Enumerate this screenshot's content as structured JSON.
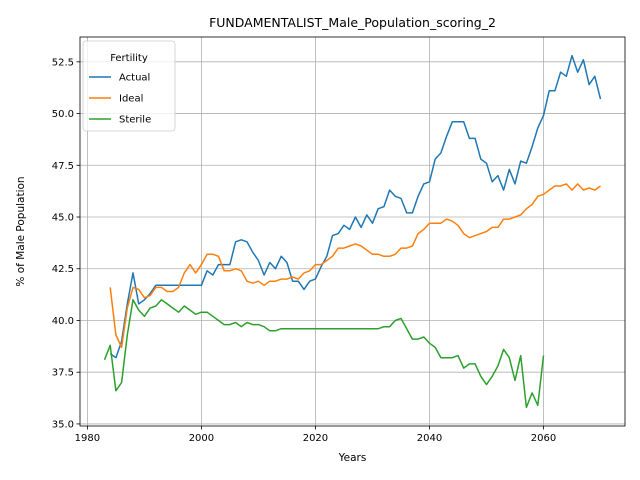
{
  "chart_data": {
    "type": "line",
    "title": "FUNDAMENTALIST_Male_Population_scoring_2",
    "xlabel": "Years",
    "ylabel": "% of Male Population",
    "xlim": [
      1978.7,
      2074.3
    ],
    "ylim": [
      34.9,
      53.7
    ],
    "xticks": [
      1980,
      2000,
      2020,
      2040,
      2060
    ],
    "yticks": [
      35.0,
      37.5,
      40.0,
      42.5,
      45.0,
      47.5,
      50.0,
      52.5
    ],
    "grid": true,
    "legend": {
      "title": "Fertility",
      "placement": "upper-left"
    },
    "series": [
      {
        "name": "Actual",
        "color": "#1f77b4",
        "points": [
          [
            1984,
            38.4
          ],
          [
            1985,
            38.2
          ],
          [
            1986,
            39.0
          ],
          [
            1987,
            40.8
          ],
          [
            1988,
            42.3
          ],
          [
            1989,
            40.8
          ],
          [
            1990,
            41.0
          ],
          [
            1991,
            41.3
          ],
          [
            1992,
            41.7
          ],
          [
            1993,
            41.7
          ],
          [
            1994,
            41.7
          ],
          [
            1995,
            41.7
          ],
          [
            1996,
            41.7
          ],
          [
            1997,
            41.7
          ],
          [
            1998,
            41.7
          ],
          [
            1999,
            41.7
          ],
          [
            2000,
            41.7
          ],
          [
            2001,
            42.4
          ],
          [
            2002,
            42.2
          ],
          [
            2003,
            42.7
          ],
          [
            2004,
            42.7
          ],
          [
            2005,
            42.7
          ],
          [
            2006,
            43.8
          ],
          [
            2007,
            43.9
          ],
          [
            2008,
            43.8
          ],
          [
            2009,
            43.3
          ],
          [
            2010,
            42.9
          ],
          [
            2011,
            42.2
          ],
          [
            2012,
            42.8
          ],
          [
            2013,
            42.5
          ],
          [
            2014,
            43.1
          ],
          [
            2015,
            42.8
          ],
          [
            2016,
            41.9
          ],
          [
            2017,
            41.9
          ],
          [
            2018,
            41.5
          ],
          [
            2019,
            41.9
          ],
          [
            2020,
            42.0
          ],
          [
            2021,
            42.6
          ],
          [
            2022,
            43.1
          ],
          [
            2023,
            44.1
          ],
          [
            2024,
            44.2
          ],
          [
            2025,
            44.6
          ],
          [
            2026,
            44.4
          ],
          [
            2027,
            45.0
          ],
          [
            2028,
            44.5
          ],
          [
            2029,
            45.1
          ],
          [
            2030,
            44.7
          ],
          [
            2031,
            45.4
          ],
          [
            2032,
            45.5
          ],
          [
            2033,
            46.3
          ],
          [
            2034,
            46.0
          ],
          [
            2035,
            45.9
          ],
          [
            2036,
            45.2
          ],
          [
            2037,
            45.2
          ],
          [
            2038,
            46.0
          ],
          [
            2039,
            46.6
          ],
          [
            2040,
            46.7
          ],
          [
            2041,
            47.8
          ],
          [
            2042,
            48.1
          ],
          [
            2043,
            48.9
          ],
          [
            2044,
            49.6
          ],
          [
            2045,
            49.6
          ],
          [
            2046,
            49.6
          ],
          [
            2047,
            48.8
          ],
          [
            2048,
            48.8
          ],
          [
            2049,
            47.8
          ],
          [
            2050,
            47.6
          ],
          [
            2051,
            46.7
          ],
          [
            2052,
            47.0
          ],
          [
            2053,
            46.3
          ],
          [
            2054,
            47.3
          ],
          [
            2055,
            46.6
          ],
          [
            2056,
            47.7
          ],
          [
            2057,
            47.6
          ],
          [
            2058,
            48.4
          ],
          [
            2059,
            49.3
          ],
          [
            2060,
            49.9
          ],
          [
            2061,
            51.1
          ],
          [
            2062,
            51.1
          ],
          [
            2063,
            52.0
          ],
          [
            2064,
            51.8
          ],
          [
            2065,
            52.8
          ],
          [
            2066,
            52.0
          ],
          [
            2067,
            52.6
          ],
          [
            2068,
            51.4
          ],
          [
            2069,
            51.8
          ],
          [
            2070,
            50.7
          ]
        ]
      },
      {
        "name": "Ideal",
        "color": "#ff7f0e",
        "points": [
          [
            1984,
            41.6
          ],
          [
            1985,
            39.3
          ],
          [
            1986,
            38.7
          ],
          [
            1987,
            40.6
          ],
          [
            1988,
            41.6
          ],
          [
            1989,
            41.5
          ],
          [
            1990,
            41.1
          ],
          [
            1991,
            41.2
          ],
          [
            1992,
            41.6
          ],
          [
            1993,
            41.6
          ],
          [
            1994,
            41.4
          ],
          [
            1995,
            41.4
          ],
          [
            1996,
            41.6
          ],
          [
            1997,
            42.3
          ],
          [
            1998,
            42.7
          ],
          [
            1999,
            42.3
          ],
          [
            2000,
            42.7
          ],
          [
            2001,
            43.2
          ],
          [
            2002,
            43.2
          ],
          [
            2003,
            43.1
          ],
          [
            2004,
            42.4
          ],
          [
            2005,
            42.4
          ],
          [
            2006,
            42.5
          ],
          [
            2007,
            42.4
          ],
          [
            2008,
            41.9
          ],
          [
            2009,
            41.8
          ],
          [
            2010,
            41.9
          ],
          [
            2011,
            41.7
          ],
          [
            2012,
            41.9
          ],
          [
            2013,
            41.9
          ],
          [
            2014,
            42.0
          ],
          [
            2015,
            42.0
          ],
          [
            2016,
            42.1
          ],
          [
            2017,
            42.0
          ],
          [
            2018,
            42.3
          ],
          [
            2019,
            42.4
          ],
          [
            2020,
            42.7
          ],
          [
            2021,
            42.7
          ],
          [
            2022,
            42.9
          ],
          [
            2023,
            43.1
          ],
          [
            2024,
            43.5
          ],
          [
            2025,
            43.5
          ],
          [
            2026,
            43.6
          ],
          [
            2027,
            43.7
          ],
          [
            2028,
            43.6
          ],
          [
            2029,
            43.4
          ],
          [
            2030,
            43.2
          ],
          [
            2031,
            43.2
          ],
          [
            2032,
            43.1
          ],
          [
            2033,
            43.1
          ],
          [
            2034,
            43.2
          ],
          [
            2035,
            43.5
          ],
          [
            2036,
            43.5
          ],
          [
            2037,
            43.6
          ],
          [
            2038,
            44.2
          ],
          [
            2039,
            44.4
          ],
          [
            2040,
            44.7
          ],
          [
            2041,
            44.7
          ],
          [
            2042,
            44.7
          ],
          [
            2043,
            44.9
          ],
          [
            2044,
            44.8
          ],
          [
            2045,
            44.6
          ],
          [
            2046,
            44.2
          ],
          [
            2047,
            44.0
          ],
          [
            2048,
            44.1
          ],
          [
            2049,
            44.2
          ],
          [
            2050,
            44.3
          ],
          [
            2051,
            44.5
          ],
          [
            2052,
            44.5
          ],
          [
            2053,
            44.9
          ],
          [
            2054,
            44.9
          ],
          [
            2055,
            45.0
          ],
          [
            2056,
            45.1
          ],
          [
            2057,
            45.4
          ],
          [
            2058,
            45.6
          ],
          [
            2059,
            46.0
          ],
          [
            2060,
            46.1
          ],
          [
            2061,
            46.3
          ],
          [
            2062,
            46.5
          ],
          [
            2063,
            46.5
          ],
          [
            2064,
            46.6
          ],
          [
            2065,
            46.3
          ],
          [
            2066,
            46.6
          ],
          [
            2067,
            46.3
          ],
          [
            2068,
            46.4
          ],
          [
            2069,
            46.3
          ],
          [
            2070,
            46.5
          ]
        ]
      },
      {
        "name": "Sterile",
        "color": "#2ca02c",
        "points": [
          [
            1983,
            38.1
          ],
          [
            1984,
            38.8
          ],
          [
            1985,
            36.6
          ],
          [
            1986,
            37.0
          ],
          [
            1987,
            39.3
          ],
          [
            1988,
            41.0
          ],
          [
            1989,
            40.5
          ],
          [
            1990,
            40.2
          ],
          [
            1991,
            40.6
          ],
          [
            1992,
            40.7
          ],
          [
            1993,
            41.0
          ],
          [
            1994,
            40.8
          ],
          [
            1995,
            40.6
          ],
          [
            1996,
            40.4
          ],
          [
            1997,
            40.7
          ],
          [
            1998,
            40.5
          ],
          [
            1999,
            40.3
          ],
          [
            2000,
            40.4
          ],
          [
            2001,
            40.4
          ],
          [
            2002,
            40.2
          ],
          [
            2003,
            40.0
          ],
          [
            2004,
            39.8
          ],
          [
            2005,
            39.8
          ],
          [
            2006,
            39.9
          ],
          [
            2007,
            39.7
          ],
          [
            2008,
            39.9
          ],
          [
            2009,
            39.8
          ],
          [
            2010,
            39.8
          ],
          [
            2011,
            39.7
          ],
          [
            2012,
            39.5
          ],
          [
            2013,
            39.5
          ],
          [
            2014,
            39.6
          ],
          [
            2015,
            39.6
          ],
          [
            2016,
            39.6
          ],
          [
            2017,
            39.6
          ],
          [
            2018,
            39.6
          ],
          [
            2019,
            39.6
          ],
          [
            2020,
            39.6
          ],
          [
            2021,
            39.6
          ],
          [
            2022,
            39.6
          ],
          [
            2023,
            39.6
          ],
          [
            2024,
            39.6
          ],
          [
            2025,
            39.6
          ],
          [
            2026,
            39.6
          ],
          [
            2027,
            39.6
          ],
          [
            2028,
            39.6
          ],
          [
            2029,
            39.6
          ],
          [
            2030,
            39.6
          ],
          [
            2031,
            39.6
          ],
          [
            2032,
            39.7
          ],
          [
            2033,
            39.7
          ],
          [
            2034,
            40.0
          ],
          [
            2035,
            40.1
          ],
          [
            2036,
            39.6
          ],
          [
            2037,
            39.1
          ],
          [
            2038,
            39.1
          ],
          [
            2039,
            39.2
          ],
          [
            2040,
            38.9
          ],
          [
            2041,
            38.7
          ],
          [
            2042,
            38.2
          ],
          [
            2043,
            38.2
          ],
          [
            2044,
            38.2
          ],
          [
            2045,
            38.3
          ],
          [
            2046,
            37.7
          ],
          [
            2047,
            37.9
          ],
          [
            2048,
            37.9
          ],
          [
            2049,
            37.3
          ],
          [
            2050,
            36.9
          ],
          [
            2051,
            37.3
          ],
          [
            2052,
            37.8
          ],
          [
            2053,
            38.6
          ],
          [
            2054,
            38.2
          ],
          [
            2055,
            37.1
          ],
          [
            2056,
            38.3
          ],
          [
            2057,
            35.8
          ],
          [
            2058,
            36.5
          ],
          [
            2059,
            35.9
          ],
          [
            2060,
            38.3
          ]
        ]
      }
    ]
  }
}
